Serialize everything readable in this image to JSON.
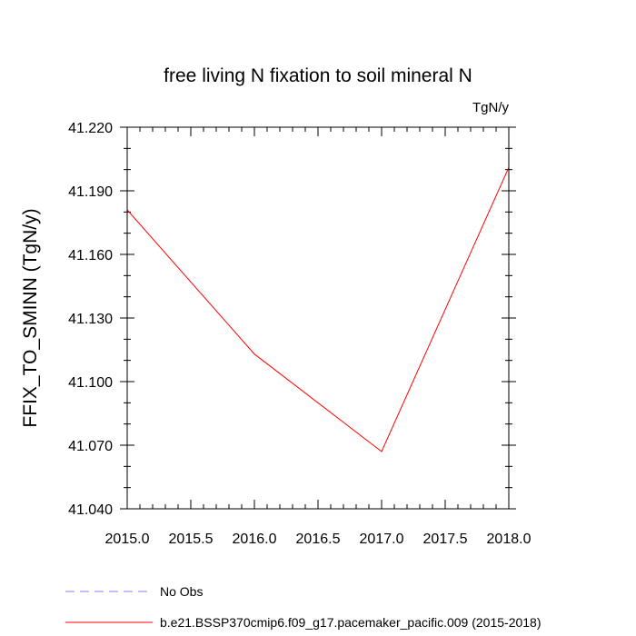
{
  "chart_data": {
    "type": "line",
    "title": "free living N fixation to soil mineral N",
    "units_label": "TgN/y",
    "xlabel": "",
    "ylabel": "FFIX_TO_SMINN  (TgN/y)",
    "xlim": [
      2015.0,
      2018.0
    ],
    "ylim": [
      41.04,
      41.22
    ],
    "x_ticks": [
      "2015.0",
      "2015.5",
      "2016.0",
      "2016.5",
      "2017.0",
      "2017.5",
      "2018.0"
    ],
    "y_ticks": [
      "41.040",
      "41.070",
      "41.100",
      "41.130",
      "41.160",
      "41.190",
      "41.220"
    ],
    "series": [
      {
        "name": "b.e21.BSSP370cmip6.f09_g17.pacemaker_pacific.009 (2015-2018)",
        "color": "#ff0000",
        "x": [
          2015,
          2016,
          2017,
          2018
        ],
        "y": [
          41.181,
          41.113,
          41.067,
          41.201
        ]
      }
    ],
    "legend": [
      {
        "label": "No Obs",
        "color": "#8080ff",
        "style": "dashed"
      },
      {
        "label": "b.e21.BSSP370cmip6.f09_g17.pacemaker_pacific.009 (2015-2018)",
        "color": "#ff0000",
        "style": "solid"
      }
    ],
    "legend_placement": "bottom-left",
    "grid": false
  }
}
